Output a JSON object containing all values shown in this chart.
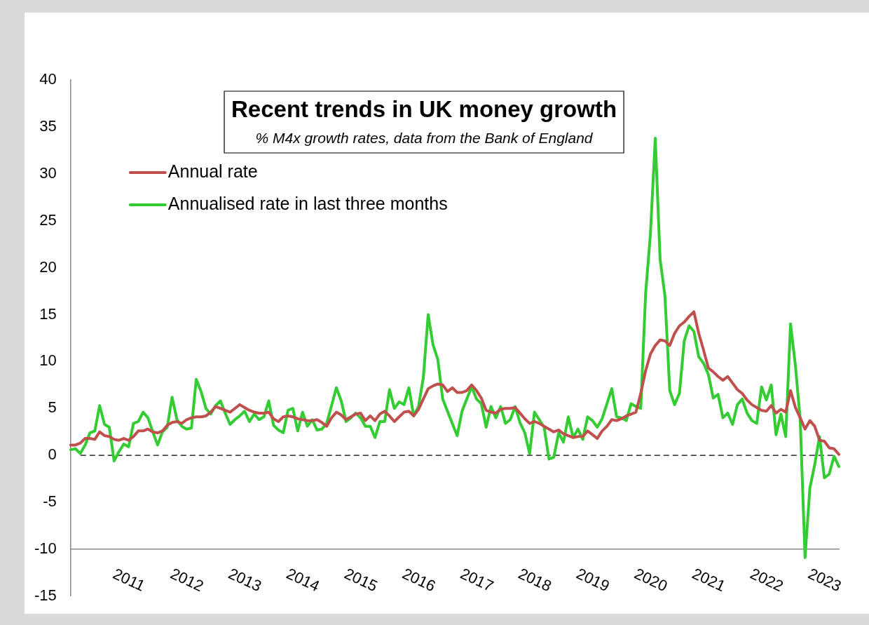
{
  "chart_data": {
    "type": "line",
    "title": "Recent trends in UK money growth",
    "subtitle": "% M4x growth rates, data from the Bank of England",
    "categories": [
      null,
      null,
      null,
      null,
      null,
      null,
      null,
      null,
      null,
      null,
      null,
      null,
      "2011",
      null,
      null,
      null,
      null,
      null,
      null,
      null,
      null,
      null,
      null,
      null,
      "2012",
      null,
      null,
      null,
      null,
      null,
      null,
      null,
      null,
      null,
      null,
      null,
      "2013",
      null,
      null,
      null,
      null,
      null,
      null,
      null,
      null,
      null,
      null,
      null,
      "2014",
      null,
      null,
      null,
      null,
      null,
      null,
      null,
      null,
      null,
      null,
      null,
      "2015",
      null,
      null,
      null,
      null,
      null,
      null,
      null,
      null,
      null,
      null,
      null,
      "2016",
      null,
      null,
      null,
      null,
      null,
      null,
      null,
      null,
      null,
      null,
      null,
      "2017",
      null,
      null,
      null,
      null,
      null,
      null,
      null,
      null,
      null,
      null,
      null,
      "2018",
      null,
      null,
      null,
      null,
      null,
      null,
      null,
      null,
      null,
      null,
      null,
      "2019",
      null,
      null,
      null,
      null,
      null,
      null,
      null,
      null,
      null,
      null,
      null,
      "2020",
      null,
      null,
      null,
      null,
      null,
      null,
      null,
      null,
      null,
      null,
      null,
      "2021",
      null,
      null,
      null,
      null,
      null,
      null,
      null,
      null,
      null,
      null,
      null,
      "2022",
      null,
      null,
      null,
      null,
      null,
      null,
      null,
      null,
      null,
      null,
      null,
      "2023",
      null,
      null,
      null
    ],
    "series": [
      {
        "name": "Annual rate",
        "color": "#c0504d",
        "values": [
          1.1,
          1.1,
          1.3,
          1.8,
          1.8,
          1.7,
          2.5,
          2.1,
          2.0,
          1.7,
          1.6,
          1.8,
          1.6,
          2.0,
          2.6,
          2.6,
          2.8,
          2.5,
          2.4,
          2.6,
          3.2,
          3.5,
          3.6,
          3.4,
          3.8,
          4.0,
          4.1,
          4.1,
          4.2,
          4.6,
          5.2,
          5.0,
          4.8,
          4.6,
          5.0,
          5.4,
          5.1,
          4.8,
          4.6,
          4.5,
          4.5,
          4.6,
          3.9,
          3.6,
          4.1,
          4.2,
          4.1,
          3.9,
          3.8,
          3.7,
          3.7,
          3.8,
          3.5,
          3.1,
          4.0,
          4.6,
          4.3,
          3.8,
          4.1,
          4.4,
          4.5,
          3.7,
          4.2,
          3.7,
          4.4,
          4.7,
          4.2,
          3.6,
          4.1,
          4.6,
          4.7,
          4.2,
          4.9,
          6.0,
          7.1,
          7.4,
          7.6,
          7.5,
          6.8,
          7.2,
          6.7,
          6.7,
          6.9,
          7.5,
          6.9,
          6.1,
          4.8,
          4.6,
          4.5,
          4.9,
          5.0,
          5.0,
          5.1,
          4.5,
          3.9,
          3.4,
          3.6,
          3.4,
          3.1,
          2.8,
          2.5,
          2.7,
          2.3,
          2.1,
          1.9,
          2.0,
          2.0,
          2.6,
          2.2,
          1.8,
          2.6,
          3.1,
          3.8,
          3.7,
          3.9,
          4.2,
          4.4,
          4.6,
          6.6,
          9.0,
          10.8,
          11.7,
          12.3,
          12.2,
          11.7,
          13.0,
          13.8,
          14.2,
          14.8,
          15.3,
          13.0,
          11.2,
          9.3,
          8.9,
          8.4,
          8.0,
          8.4,
          7.7,
          7.0,
          6.6,
          5.9,
          5.4,
          5.1,
          4.8,
          4.7,
          5.3,
          4.5,
          4.9,
          4.6,
          6.9,
          5.1,
          4.0,
          2.8,
          3.7,
          3.1,
          1.6,
          1.5,
          0.8,
          0.7,
          0.1
        ]
      },
      {
        "name": "Annualised rate in last three months",
        "color": "#33cc33",
        "values": [
          0.6,
          0.7,
          0.2,
          1.1,
          2.4,
          2.6,
          5.3,
          3.3,
          3.0,
          -0.6,
          0.4,
          1.2,
          0.9,
          3.4,
          3.6,
          4.6,
          4.0,
          2.5,
          1.1,
          2.5,
          3.0,
          6.2,
          3.8,
          3.1,
          2.8,
          2.9,
          8.1,
          6.8,
          5.0,
          4.4,
          5.3,
          5.8,
          4.5,
          3.3,
          3.8,
          4.2,
          4.7,
          3.6,
          4.4,
          3.8,
          4.1,
          5.8,
          3.2,
          2.7,
          2.4,
          4.8,
          5.0,
          2.6,
          4.6,
          3.1,
          3.8,
          2.7,
          2.8,
          3.4,
          5.3,
          7.2,
          5.8,
          3.6,
          4.0,
          4.5,
          4.0,
          3.1,
          3.1,
          1.9,
          3.6,
          3.6,
          7.0,
          5.0,
          5.7,
          5.4,
          7.2,
          4.2,
          5.2,
          8.3,
          15.0,
          11.8,
          10.2,
          6.0,
          4.7,
          3.4,
          2.1,
          4.7,
          6.0,
          7.3,
          6.0,
          5.5,
          3.0,
          5.2,
          4.0,
          5.2,
          3.4,
          3.8,
          5.2,
          3.5,
          2.4,
          0.2,
          4.6,
          3.8,
          3.0,
          -0.4,
          -0.2,
          2.4,
          1.4,
          4.1,
          1.9,
          2.8,
          1.7,
          4.1,
          3.7,
          3.0,
          3.9,
          5.5,
          7.1,
          4.1,
          4.0,
          3.7,
          5.5,
          5.2,
          5.0,
          17.2,
          23.6,
          33.8,
          20.9,
          17.0,
          6.9,
          5.4,
          6.6,
          12.2,
          13.8,
          13.2,
          10.5,
          9.8,
          8.6,
          6.1,
          6.5,
          4.0,
          4.5,
          3.3,
          5.4,
          6.0,
          4.5,
          3.7,
          3.4,
          7.3,
          5.9,
          7.5,
          2.2,
          4.4,
          2.0,
          14.0,
          9.6,
          3.8,
          -10.9,
          -3.5,
          -1.0,
          2.0,
          -2.4,
          -2.0,
          -0.1,
          -1.2
        ]
      }
    ],
    "ylim": [
      -15,
      40
    ],
    "yticks": [
      -15,
      -10,
      -5,
      0,
      5,
      10,
      15,
      20,
      25,
      30,
      35,
      40
    ],
    "ref_lines": [
      {
        "axis": "y",
        "value": 0,
        "color": "#000000",
        "line_style": "dashed"
      }
    ],
    "legend": "top left",
    "marker": "none",
    "line_style": "solid"
  }
}
